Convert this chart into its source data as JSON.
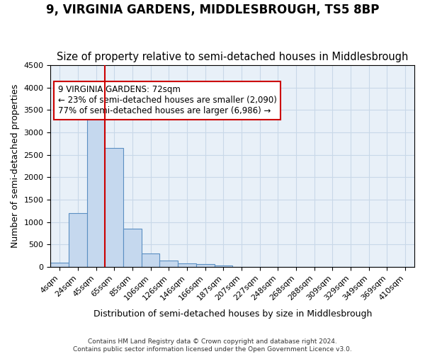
{
  "title": "9, VIRGINIA GARDENS, MIDDLESBROUGH, TS5 8BP",
  "subtitle": "Size of property relative to semi-detached houses in Middlesbrough",
  "xlabel": "Distribution of semi-detached houses by size in Middlesbrough",
  "ylabel": "Number of semi-detached properties",
  "footer_line1": "Contains HM Land Registry data © Crown copyright and database right 2024.",
  "footer_line2": "Contains public sector information licensed under the Open Government Licence v3.0.",
  "bin_labels": [
    "4sqm",
    "24sqm",
    "45sqm",
    "65sqm",
    "85sqm",
    "106sqm",
    "126sqm",
    "146sqm",
    "166sqm",
    "187sqm",
    "207sqm",
    "227sqm",
    "248sqm",
    "268sqm",
    "288sqm",
    "309sqm",
    "329sqm",
    "349sqm",
    "369sqm",
    "410sqm"
  ],
  "bar_values": [
    100,
    1200,
    3650,
    2650,
    850,
    300,
    150,
    80,
    60,
    40,
    0,
    0,
    0,
    0,
    0,
    0,
    0,
    0,
    0,
    0
  ],
  "ylim": [
    0,
    4500
  ],
  "yticks": [
    0,
    500,
    1000,
    1500,
    2000,
    2500,
    3000,
    3500,
    4000,
    4500
  ],
  "property_size": 72,
  "property_bin_index": 3,
  "bar_color": "#c5d8ee",
  "bar_edge_color": "#5a8fc2",
  "red_line_color": "#cc0000",
  "annotation_text_line1": "9 VIRGINIA GARDENS: 72sqm",
  "annotation_text_line2": "← 23% of semi-detached houses are smaller (2,090)",
  "annotation_text_line3": "77% of semi-detached houses are larger (6,986) →",
  "annotation_box_color": "#ffffff",
  "annotation_box_edge": "#cc0000",
  "background_color": "#ffffff",
  "grid_color": "#c8d8e8",
  "title_fontsize": 12,
  "subtitle_fontsize": 10.5,
  "label_fontsize": 9,
  "tick_fontsize": 8,
  "annotation_fontsize": 8.5
}
